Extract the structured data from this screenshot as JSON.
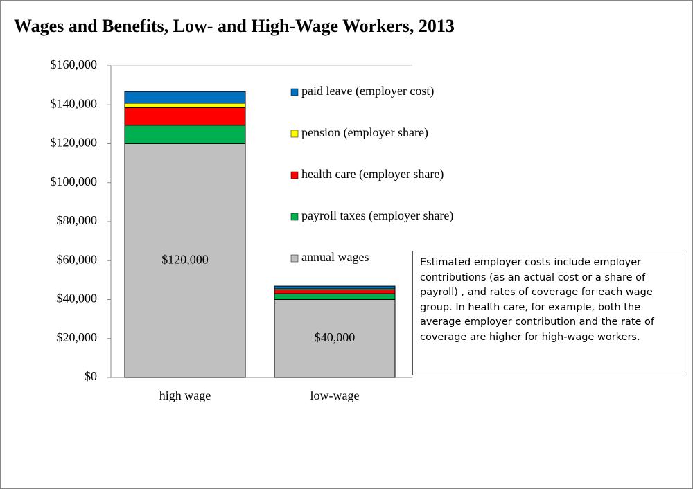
{
  "chart_data": {
    "type": "stacked_bar",
    "title": "Wages and Benefits, Low- and High-Wage Workers, 2013",
    "categories": [
      "high wage",
      "low-wage"
    ],
    "series": [
      {
        "name": "annual wages",
        "color": "#c0c0c0",
        "values": [
          120000,
          40000
        ],
        "value_labels": [
          "$120,000",
          "$40,000"
        ]
      },
      {
        "name": "payroll taxes (employer share)",
        "color": "#00b050",
        "values": [
          9500,
          3000
        ]
      },
      {
        "name": "health care (employer share)",
        "color": "#ff0000",
        "values": [
          9000,
          2000
        ]
      },
      {
        "name": "pension (employer share)",
        "color": "#ffff00",
        "values": [
          2300,
          500
        ]
      },
      {
        "name": "paid leave (employer cost)",
        "color": "#0070c0",
        "values": [
          6000,
          1400
        ]
      }
    ],
    "ylim": [
      0,
      160000
    ],
    "yticks": [
      {
        "value": 0,
        "label": "$0"
      },
      {
        "value": 20000,
        "label": "$20,000"
      },
      {
        "value": 40000,
        "label": "$40,000"
      },
      {
        "value": 60000,
        "label": "$60,000"
      },
      {
        "value": 80000,
        "label": "$80,000"
      },
      {
        "value": 100000,
        "label": "$100,000"
      },
      {
        "value": 120000,
        "label": "$120,000"
      },
      {
        "value": 140000,
        "label": "$140,000"
      },
      {
        "value": 160000,
        "label": "$160,000"
      }
    ],
    "grid": false,
    "annotation": "Estimated employer costs  include employer contributions (as an actual cost or a share of payroll) , and rates of coverage for each wage group.  In health care, for example, both the average employer contribution and the rate of coverage are higher for high-wage workers."
  }
}
